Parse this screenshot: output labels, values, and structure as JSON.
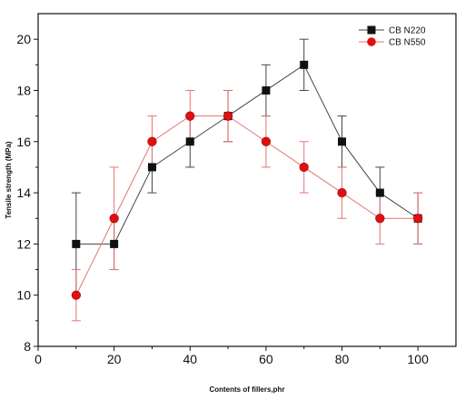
{
  "chart_data": {
    "type": "line",
    "xlabel": "Contents of fillers,phr",
    "ylabel": "Tensile strength (MPa)",
    "xlim": [
      0,
      110
    ],
    "ylim": [
      8,
      21
    ],
    "xticks": [
      "0",
      "20",
      "40",
      "60",
      "80",
      "100"
    ],
    "yticks": [
      "8",
      "10",
      "12",
      "14",
      "16",
      "18",
      "20"
    ],
    "x": [
      10,
      20,
      30,
      40,
      50,
      60,
      70,
      80,
      90,
      100
    ],
    "legend_position": "top-right",
    "grid": false,
    "series": [
      {
        "name": "CB N220",
        "marker": "square",
        "color": "#111111",
        "line_color": "#444444",
        "values": [
          12,
          12,
          15,
          16,
          17,
          18,
          19,
          16,
          14,
          13
        ],
        "err_low": [
          10,
          11,
          14,
          15,
          16,
          17,
          18,
          15,
          13,
          12
        ],
        "err_high": [
          14,
          13,
          16,
          17,
          18,
          19,
          20,
          17,
          15,
          14
        ]
      },
      {
        "name": "CB N550",
        "marker": "circle",
        "color": "#e01010",
        "line_color": "#e57373",
        "values": [
          10,
          13,
          16,
          17,
          17,
          16,
          15,
          14,
          13,
          13
        ],
        "err_low": [
          9,
          11,
          15,
          16,
          16,
          15,
          14,
          13,
          12,
          12
        ],
        "err_high": [
          11,
          15,
          17,
          18,
          18,
          17,
          16,
          15,
          14,
          14
        ]
      }
    ]
  }
}
